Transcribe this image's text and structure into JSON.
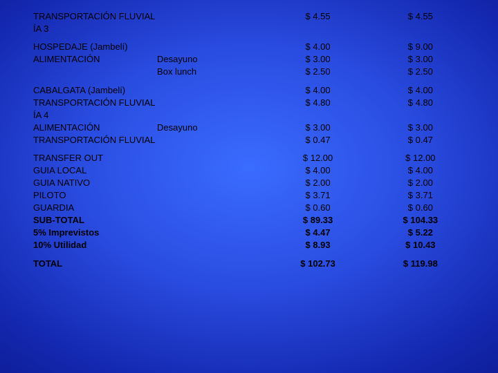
{
  "rows": [
    {
      "label": "TRANSPORTACIÓN FLUVIAL",
      "sub": "",
      "a": "$ 4.55",
      "b": "$ 4.55",
      "bold": false,
      "break": false
    },
    {
      "label": "ÍA 3",
      "sub": "",
      "a": "",
      "b": "",
      "bold": false,
      "break": false
    },
    {
      "label": "HOSPEDAJE (Jambelí)",
      "sub": "",
      "a": "$ 4.00",
      "b": "$ 9.00",
      "bold": false,
      "break": true
    },
    {
      "label": "ALIMENTACIÓN",
      "sub": "Desayuno",
      "a": "$ 3.00",
      "b": "$ 3.00",
      "bold": false,
      "break": false
    },
    {
      "label": "",
      "sub": "Box lunch",
      "a": "$ 2.50",
      "b": "$ 2.50",
      "bold": false,
      "break": false
    },
    {
      "label": "CABALGATA (Jambelí)",
      "sub": "",
      "a": "$ 4.00",
      "b": "$ 4.00",
      "bold": false,
      "break": true
    },
    {
      "label": "TRANSPORTACIÓN FLUVIAL",
      "sub": "",
      "a": "$ 4.80",
      "b": "$ 4.80",
      "bold": false,
      "break": false
    },
    {
      "label": "ÍA 4",
      "sub": "",
      "a": "",
      "b": "",
      "bold": false,
      "break": false
    },
    {
      "label": "ALIMENTACIÓN",
      "sub": "Desayuno",
      "a": "$ 3.00",
      "b": "$ 3.00",
      "bold": false,
      "break": false
    },
    {
      "label": "TRANSPORTACIÓN FLUVIAL",
      "sub": "",
      "a": "$ 0.47",
      "b": "$ 0.47",
      "bold": false,
      "break": false
    },
    {
      "label": "TRANSFER OUT",
      "sub": "",
      "a": "$ 12.00",
      "b": "$ 12.00",
      "bold": false,
      "break": true
    },
    {
      "label": "GUIA LOCAL",
      "sub": "",
      "a": "$ 4.00",
      "b": "$ 4.00",
      "bold": false,
      "break": false
    },
    {
      "label": "GUIA NATIVO",
      "sub": "",
      "a": "$ 2.00",
      "b": "$ 2.00",
      "bold": false,
      "break": false
    },
    {
      "label": "PILOTO",
      "sub": "",
      "a": "$ 3.71",
      "b": "$ 3.71",
      "bold": false,
      "break": false
    },
    {
      "label": "GUARDIA",
      "sub": "",
      "a": "$ 0.60",
      "b": "$ 0.60",
      "bold": false,
      "break": false
    },
    {
      "label": "SUB-TOTAL",
      "sub": "",
      "a": "$ 89.33",
      "b": "$ 104.33",
      "bold": true,
      "break": false
    },
    {
      "label": "5% Imprevistos",
      "sub": "",
      "a": "$ 4.47",
      "b": "$ 5.22",
      "bold": true,
      "break": false
    },
    {
      "label": "10% Utilidad",
      "sub": "",
      "a": "$ 8.93",
      "b": "$ 10.43",
      "bold": true,
      "break": false
    },
    {
      "label": "TOTAL",
      "sub": "",
      "a": "$ 102.73",
      "b": "$ 119.98",
      "bold": true,
      "break": true
    }
  ]
}
